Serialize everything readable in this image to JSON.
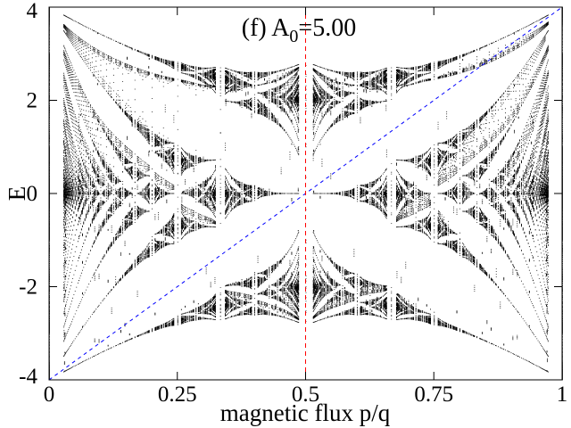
{
  "chart_data": {
    "type": "scatter",
    "title": {
      "prefix": "(f) A",
      "subscript": "0",
      "suffix": "=5.00"
    },
    "xlabel": "magnetic flux p/q",
    "ylabel": "E",
    "xlim": [
      0,
      1
    ],
    "ylim": [
      -4,
      4
    ],
    "x_ticks": [
      0,
      0.25,
      0.5,
      0.75,
      1
    ],
    "x_tick_labels": [
      "0",
      "0.25",
      "0.5",
      "0.75",
      "1"
    ],
    "y_ticks": [
      -4,
      -2,
      0,
      2,
      4
    ],
    "y_tick_labels": [
      "-4",
      "-2",
      "0",
      "2",
      "4"
    ],
    "grid": false,
    "series": [
      {
        "kind": "spectrum-points",
        "color": "#000000",
        "description_of_values": "energy eigenvalues E at rational flux p/q"
      },
      {
        "kind": "reference-line",
        "style": "dashed",
        "color": "#0000ff",
        "x": [
          0,
          1
        ],
        "y": [
          -4,
          4
        ]
      },
      {
        "kind": "reference-line",
        "style": "dashed",
        "color": "#ff0000",
        "x": [
          0.5,
          0.5
        ],
        "y": [
          -4,
          4
        ]
      }
    ]
  }
}
